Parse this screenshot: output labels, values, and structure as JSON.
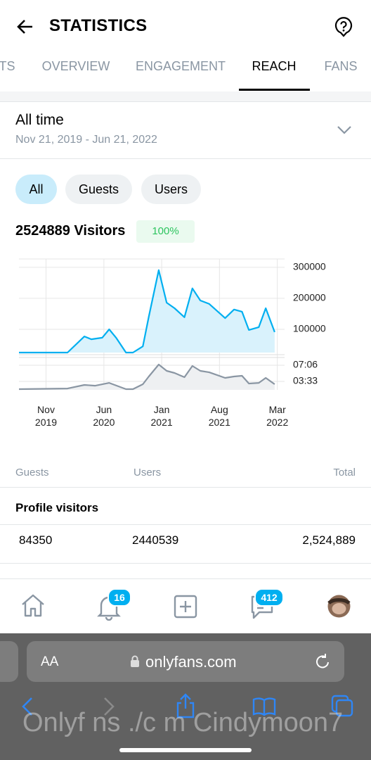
{
  "header": {
    "title": "STATISTICS"
  },
  "tabs": {
    "items": [
      "TS",
      "OVERVIEW",
      "ENGAGEMENT",
      "REACH",
      "FANS"
    ],
    "active_index": 3
  },
  "period": {
    "title": "All time",
    "range": "Nov 21, 2019 - Jun 21, 2022"
  },
  "filters": {
    "items": [
      "All",
      "Guests",
      "Users"
    ],
    "active_index": 0
  },
  "summary": {
    "visitors": "2524889 Visitors",
    "badge": "100%"
  },
  "chart_data": {
    "type": "line",
    "xlim": [
      2019.56,
      2022.24
    ],
    "xticks": [
      {
        "value": 2019.833,
        "label": "Nov 2019"
      },
      {
        "value": 2020.417,
        "label": "Jun 2020"
      },
      {
        "value": 2021.0,
        "label": "Jan 2021"
      },
      {
        "value": 2021.583,
        "label": "Aug 2021"
      },
      {
        "value": 2022.167,
        "label": "Mar 2022"
      }
    ],
    "ylim": [
      25000,
      327000
    ],
    "yticks": [
      100000,
      200000,
      300000
    ],
    "y2lim": [
      102,
      528
    ],
    "y2ticks": [
      {
        "value": 213,
        "label": "03:33"
      },
      {
        "value": 426,
        "label": "07:06"
      }
    ],
    "grid": true,
    "series": [
      {
        "color": "#00aff0",
        "fill": "#d9f2fc",
        "x": [
          2019.56,
          2020.05,
          2020.22,
          2020.29,
          2020.4,
          2020.47,
          2020.54,
          2020.64,
          2020.71,
          2020.81,
          2020.87,
          2020.97,
          2021.05,
          2021.13,
          2021.23,
          2021.31,
          2021.39,
          2021.48,
          2021.64,
          2021.73,
          2021.81,
          2021.88,
          2021.98,
          2022.05,
          2022.14
        ],
        "values": [
          25000,
          25000,
          77000,
          68000,
          73000,
          100000,
          73000,
          25000,
          25000,
          45000,
          141000,
          291000,
          186000,
          168000,
          139000,
          232000,
          193000,
          182000,
          136000,
          164000,
          157000,
          98000,
          107000,
          168000,
          91000
        ]
      },
      {
        "color": "#8a96a3",
        "fill": "#eef0f2",
        "axis": "y2",
        "x": [
          2019.56,
          2020.05,
          2020.22,
          2020.33,
          2020.47,
          2020.64,
          2020.71,
          2020.81,
          2020.87,
          2020.97,
          2021.05,
          2021.13,
          2021.23,
          2021.31,
          2021.39,
          2021.48,
          2021.64,
          2021.73,
          2021.81,
          2021.88,
          2021.98,
          2022.05,
          2022.14
        ],
        "values": [
          111,
          120,
          167,
          157,
          194,
          111,
          111,
          176,
          278,
          435,
          352,
          324,
          269,
          417,
          352,
          333,
          259,
          278,
          287,
          185,
          194,
          259,
          176
        ]
      }
    ]
  },
  "table": {
    "headers": [
      "Guests",
      "Users",
      "Total"
    ],
    "row_label": "Profile visitors",
    "rows": [
      [
        "84350",
        "2440539",
        "2,524,889"
      ]
    ]
  },
  "nav": {
    "badges": [
      "16",
      "412"
    ]
  },
  "browser": {
    "text_size": "AA",
    "url": "onlyfans.com"
  },
  "watermark": "Onlyf ns ./c m Cindymoon7"
}
